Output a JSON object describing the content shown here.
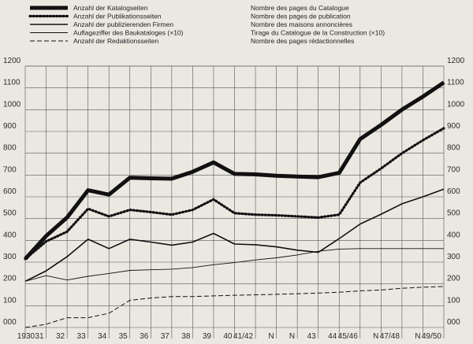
{
  "chart_data": {
    "type": "line",
    "categories": [
      "1930",
      "31",
      "32",
      "33",
      "34",
      "35",
      "36",
      "37",
      "38",
      "39",
      "40",
      "41/42",
      "N",
      "N",
      "43",
      "44",
      "45/46",
      "N",
      "47/48",
      "N",
      "49/50"
    ],
    "ylim": [
      0,
      1200
    ],
    "y_ticks": [
      "000",
      "100",
      "200",
      "300",
      "400",
      "500",
      "600",
      "700",
      "800",
      "900",
      "1000",
      "1100",
      "1200"
    ],
    "y_ticks_right": [
      "000",
      "100",
      "200",
      "300",
      "400",
      "500",
      "600",
      "700",
      "800",
      "900",
      "1000",
      "1100",
      "1200"
    ],
    "grid": true,
    "legend_position": "top",
    "series": [
      {
        "name": "Anzahl der Katalogseiten",
        "name_fr": "Nombre des pages du Catalogue",
        "style": "thick",
        "values": [
          315,
          420,
          505,
          630,
          610,
          688,
          685,
          683,
          715,
          758,
          705,
          703,
          697,
          693,
          690,
          710,
          865,
          930,
          1000,
          1060,
          1125
        ]
      },
      {
        "name": "Anzahl der Publikationsseiten",
        "name_fr": "Nombre des pages de publication",
        "style": "dotted",
        "values": [
          315,
          395,
          440,
          545,
          510,
          540,
          530,
          518,
          540,
          588,
          525,
          518,
          515,
          510,
          505,
          518,
          665,
          730,
          800,
          860,
          915
        ]
      },
      {
        "name": "Anzahl der publizierenden Firmen",
        "name_fr": "Nombre des maisons annoncières",
        "style": "solid",
        "values": [
          212,
          260,
          325,
          405,
          362,
          405,
          392,
          378,
          392,
          432,
          383,
          380,
          370,
          355,
          345,
          408,
          475,
          520,
          568,
          600,
          635
        ]
      },
      {
        "name": "Auflageziffer des Baukataloges (×10)",
        "name_fr": "Tirage du Catalogue de la Construction (×10)",
        "style": "thin",
        "values": [
          212,
          238,
          218,
          235,
          248,
          262,
          265,
          268,
          275,
          288,
          298,
          310,
          320,
          333,
          350,
          360,
          362,
          362,
          362,
          362,
          362
        ]
      },
      {
        "name": "Anzahl der Redaktionsseiten",
        "name_fr": "Nombre des pages rédactionnelles",
        "style": "dashed",
        "values": [
          0,
          15,
          45,
          45,
          65,
          125,
          135,
          142,
          142,
          145,
          148,
          150,
          152,
          155,
          158,
          162,
          168,
          172,
          180,
          185,
          188
        ]
      }
    ]
  }
}
